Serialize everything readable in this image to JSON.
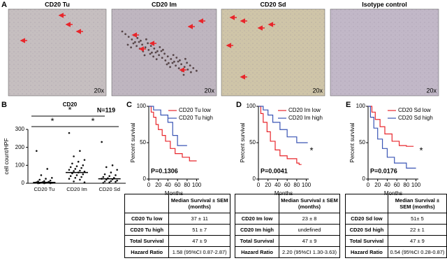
{
  "panel_a": {
    "label": "A",
    "images": [
      {
        "title": "CD20 Tu",
        "magnification": "20x"
      },
      {
        "title": "CD20 Im",
        "magnification": "20x"
      },
      {
        "title": "CD20 Sd",
        "magnification": "20x"
      },
      {
        "title": "Isotype control",
        "magnification": "20x"
      }
    ]
  },
  "chart_data": [
    {
      "type": "dotplot",
      "label": "B",
      "title": "CD20",
      "y_label": "cell count/HPF",
      "categories": [
        "CD20 Tu",
        "CD20 Im",
        "CD20 Sd"
      ],
      "values": [
        [
          180,
          80,
          45,
          30,
          25,
          20,
          15,
          12,
          10,
          8,
          6,
          5,
          4,
          3,
          2,
          2,
          1,
          0,
          0,
          0
        ],
        [
          280,
          180,
          150,
          130,
          120,
          110,
          100,
          95,
          90,
          85,
          80,
          75,
          70,
          68,
          65,
          60,
          55,
          50,
          45,
          40,
          35,
          30,
          25,
          20,
          10,
          5
        ],
        [
          230,
          100,
          90,
          75,
          60,
          50,
          45,
          40,
          35,
          30,
          28,
          25,
          22,
          20,
          15,
          12,
          10,
          8,
          5,
          2
        ]
      ],
      "medians": [
        5,
        60,
        25
      ],
      "color": "#111111",
      "ylim": [
        0,
        300
      ],
      "yticks": [
        0,
        100,
        200,
        300
      ],
      "annotations": [
        "*",
        "*",
        "*",
        "N=119"
      ]
    },
    {
      "type": "line",
      "label": "C",
      "y_label": "Percent survival",
      "x_label": "Months",
      "p_value": "P=0.1306",
      "series": [
        {
          "name": "CD20 Tu low",
          "color": "#e8262b",
          "x": [
            0,
            5,
            5,
            10,
            10,
            15,
            15,
            20,
            20,
            28,
            28,
            35,
            35,
            45,
            45,
            55,
            55,
            70,
            70,
            85,
            85,
            100
          ],
          "values": [
            100,
            100,
            92,
            92,
            85,
            85,
            75,
            75,
            68,
            68,
            60,
            60,
            52,
            52,
            42,
            42,
            35,
            35,
            30,
            30,
            25,
            25
          ]
        },
        {
          "name": "CD20 Tu high",
          "color": "#3a55b5",
          "x": [
            0,
            10,
            10,
            25,
            25,
            40,
            40,
            50,
            50,
            60,
            60,
            80
          ],
          "values": [
            100,
            100,
            95,
            95,
            88,
            88,
            78,
            78,
            60,
            60,
            46,
            46
          ]
        }
      ],
      "xlim": [
        0,
        105
      ],
      "xticks": [
        0,
        20,
        40,
        60,
        80,
        100
      ],
      "ylim": [
        0,
        100
      ],
      "yticks": [
        0,
        50,
        100
      ]
    },
    {
      "type": "line",
      "label": "D",
      "y_label": "Percent survival",
      "x_label": "Months",
      "p_value": "P=0.0041",
      "star": "*",
      "series": [
        {
          "name": "CD20 Im low",
          "color": "#e8262b",
          "x": [
            0,
            5,
            5,
            10,
            10,
            18,
            18,
            25,
            25,
            35,
            35,
            45,
            45,
            60,
            60,
            80,
            80,
            85,
            85,
            90
          ],
          "values": [
            100,
            100,
            90,
            90,
            78,
            78,
            65,
            65,
            52,
            52,
            40,
            40,
            32,
            32,
            28,
            28,
            22,
            22,
            20,
            20
          ]
        },
        {
          "name": "CD20 Im high",
          "color": "#3a55b5",
          "x": [
            0,
            10,
            10,
            20,
            20,
            30,
            30,
            45,
            45,
            60,
            60,
            80,
            80,
            103
          ],
          "values": [
            100,
            100,
            95,
            95,
            88,
            88,
            78,
            78,
            68,
            68,
            58,
            58,
            50,
            50
          ]
        }
      ],
      "xlim": [
        0,
        105
      ],
      "xticks": [
        0,
        20,
        40,
        60,
        80,
        100
      ],
      "ylim": [
        0,
        100
      ],
      "yticks": [
        0,
        50,
        100
      ]
    },
    {
      "type": "line",
      "label": "E",
      "y_label": "Percent survival",
      "x_label": "Months",
      "p_value": "P=0.0176",
      "star": "*",
      "series": [
        {
          "name": "CD20 Sd low",
          "color": "#e8262b",
          "x": [
            0,
            8,
            8,
            15,
            15,
            25,
            25,
            35,
            35,
            50,
            50,
            65,
            65,
            80,
            80,
            95
          ],
          "values": [
            100,
            100,
            92,
            92,
            82,
            82,
            72,
            72,
            62,
            62,
            52,
            52,
            46,
            46,
            45,
            45
          ]
        },
        {
          "name": "CD20 Sd high",
          "color": "#3a55b5",
          "x": [
            0,
            5,
            5,
            12,
            12,
            20,
            20,
            30,
            30,
            40,
            40,
            55,
            55,
            80,
            80,
            100
          ],
          "values": [
            100,
            100,
            85,
            85,
            70,
            70,
            55,
            55,
            42,
            42,
            30,
            30,
            22,
            22,
            15,
            15
          ]
        }
      ],
      "xlim": [
        0,
        105
      ],
      "xticks": [
        0,
        20,
        40,
        60,
        80,
        100
      ],
      "ylim": [
        0,
        100
      ],
      "yticks": [
        0,
        50,
        100
      ]
    }
  ],
  "tables": [
    {
      "header": "Median Survival ± SEM (months)",
      "rows": [
        [
          "CD20 Tu low",
          "37 ± 11"
        ],
        [
          "CD20 Tu high",
          "51 ± 7"
        ],
        [
          "Total Survival",
          "47 ± 9"
        ],
        [
          "Hazard Ratio",
          "1.58 (95%CI 0.87-2.87)"
        ]
      ]
    },
    {
      "header": "Median Survival ± SEM (months)",
      "rows": [
        [
          "CD20 Im low",
          "23 ± 8"
        ],
        [
          "CD20 Im high",
          "undefined"
        ],
        [
          "Total Survival",
          "47 ± 9"
        ],
        [
          "Hazard Ratio",
          "2.20 (95%CI 1.30-3.63)"
        ]
      ]
    },
    {
      "header": "Median Survival ± SEM (months)",
      "rows": [
        [
          "CD20 Sd low",
          "51± 5"
        ],
        [
          "CD20 Sd high",
          "22 ± 1"
        ],
        [
          "Total Survival",
          "47 ± 9"
        ],
        [
          "Hazard Ratio",
          "0.54 (95%CI 0.28-0.87)"
        ]
      ]
    }
  ]
}
